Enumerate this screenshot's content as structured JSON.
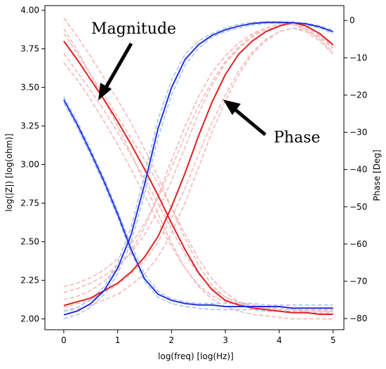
{
  "chart_data": {
    "type": "line",
    "title": "",
    "xlabel": "log(freq) [log(Hz)]",
    "ylabel_left": "log(|Z|) [log(ohm)]",
    "ylabel_right": "Phase [Deg]",
    "xlim": [
      -0.35,
      5.2
    ],
    "ylim_left": [
      1.93,
      4.03
    ],
    "ylim_right": [
      -83,
      4
    ],
    "x_ticks": [
      0,
      1,
      2,
      3,
      4,
      5
    ],
    "y_ticks_left": [
      "2.00",
      "2.25",
      "2.50",
      "2.75",
      "3.00",
      "3.25",
      "3.50",
      "3.75",
      "4.00"
    ],
    "y_ticks_right": [
      "0",
      "−10",
      "−20",
      "−30",
      "−40",
      "−50",
      "−60",
      "−70",
      "−80"
    ],
    "grid": false,
    "annotations": [
      {
        "text": "Magnitude"
      },
      {
        "text": "Phase"
      }
    ],
    "x": [
      0,
      0.25,
      0.5,
      0.75,
      1.0,
      1.25,
      1.5,
      1.75,
      2.0,
      2.25,
      2.5,
      2.75,
      3.0,
      3.25,
      3.5,
      3.75,
      4.0,
      4.25,
      4.5,
      4.75,
      5.0
    ],
    "series": [
      {
        "color": "#e02020",
        "axis": "left",
        "style": "solid",
        "values": [
          3.8,
          3.68,
          3.55,
          3.42,
          3.28,
          3.13,
          2.97,
          2.8,
          2.62,
          2.45,
          2.3,
          2.19,
          2.12,
          2.09,
          2.07,
          2.06,
          2.05,
          2.04,
          2.04,
          2.03,
          2.03
        ]
      },
      {
        "color": "#2233dd",
        "axis": "left",
        "style": "solid",
        "values": [
          3.42,
          3.26,
          3.08,
          2.89,
          2.68,
          2.45,
          2.26,
          2.16,
          2.12,
          2.1,
          2.09,
          2.09,
          2.08,
          2.08,
          2.08,
          2.08,
          2.08,
          2.07,
          2.07,
          2.07,
          2.07
        ]
      },
      {
        "color": "#e02020",
        "axis": "right",
        "style": "solid",
        "values": [
          -76.5,
          -75.5,
          -74.5,
          -72.5,
          -70.5,
          -67.5,
          -63.5,
          -58.0,
          -50.0,
          -41.0,
          -31.0,
          -22.0,
          -14.5,
          -9.0,
          -5.5,
          -3.0,
          -1.5,
          -0.5,
          -1.5,
          -3.5,
          -6.5
        ]
      },
      {
        "color": "#2233dd",
        "axis": "right",
        "style": "solid",
        "values": [
          -79.0,
          -78.0,
          -76.0,
          -72.5,
          -66.5,
          -57.5,
          -44.0,
          -29.0,
          -18.0,
          -10.5,
          -6.5,
          -4.0,
          -2.5,
          -1.5,
          -0.8,
          -0.5,
          -0.5,
          -0.6,
          -0.9,
          -1.7,
          -3.0
        ]
      },
      {
        "color": "#f4b8b8",
        "axis": "left",
        "style": "dashed",
        "values": [
          3.95,
          3.83,
          3.7,
          3.56,
          3.42,
          3.27,
          3.1,
          2.92,
          2.72,
          2.52,
          2.35,
          2.22,
          2.14,
          2.1,
          2.08,
          2.07,
          2.06,
          2.06,
          2.05,
          2.05,
          2.05
        ]
      },
      {
        "color": "#f4b8b8",
        "axis": "left",
        "style": "dashed",
        "values": [
          3.88,
          3.74,
          3.58,
          3.42,
          3.25,
          3.07,
          2.88,
          2.68,
          2.49,
          2.33,
          2.21,
          2.13,
          2.08,
          2.05,
          2.03,
          2.02,
          2.01,
          2.0,
          2.0,
          2.0,
          2.0
        ]
      },
      {
        "color": "#f4b8b8",
        "axis": "left",
        "style": "dashed",
        "values": [
          3.72,
          3.6,
          3.48,
          3.35,
          3.21,
          3.06,
          2.91,
          2.75,
          2.58,
          2.42,
          2.29,
          2.2,
          2.14,
          2.11,
          2.09,
          2.08,
          2.08,
          2.07,
          2.07,
          2.07,
          2.07
        ]
      },
      {
        "color": "#f4b8b8",
        "axis": "left",
        "style": "dashed",
        "values": [
          3.85,
          3.72,
          3.58,
          3.45,
          3.31,
          3.17,
          3.03,
          2.88,
          2.72,
          2.55,
          2.39,
          2.26,
          2.17,
          2.11,
          2.08,
          2.06,
          2.05,
          2.04,
          2.04,
          2.04,
          2.04
        ]
      },
      {
        "color": "#f4b8b8",
        "axis": "left",
        "style": "dashed",
        "values": [
          3.66,
          3.55,
          3.42,
          3.28,
          3.13,
          2.97,
          2.8,
          2.63,
          2.47,
          2.33,
          2.22,
          2.15,
          2.11,
          2.09,
          2.08,
          2.07,
          2.07,
          2.06,
          2.06,
          2.06,
          2.06
        ]
      },
      {
        "color": "#aac4ee",
        "axis": "left",
        "style": "dashed",
        "values": [
          3.44,
          3.28,
          3.1,
          2.91,
          2.7,
          2.48,
          2.29,
          2.18,
          2.13,
          2.11,
          2.1,
          2.1,
          2.1,
          2.1,
          2.1,
          2.09,
          2.09,
          2.09,
          2.09,
          2.09,
          2.09
        ]
      },
      {
        "color": "#aac4ee",
        "axis": "left",
        "style": "dashed",
        "values": [
          3.4,
          3.24,
          3.06,
          2.87,
          2.66,
          2.43,
          2.24,
          2.14,
          2.1,
          2.08,
          2.07,
          2.06,
          2.06,
          2.06,
          2.06,
          2.05,
          2.05,
          2.05,
          2.05,
          2.05,
          2.05
        ]
      },
      {
        "color": "#f4b8b8",
        "axis": "right",
        "style": "dashed",
        "values": [
          -73.0,
          -72.0,
          -70.5,
          -68.5,
          -66.0,
          -62.5,
          -57.5,
          -51.0,
          -43.0,
          -34.0,
          -25.0,
          -17.5,
          -11.5,
          -7.5,
          -4.5,
          -2.5,
          -1.5,
          -1.0,
          -2.0,
          -4.0,
          -7.0
        ]
      },
      {
        "color": "#f4b8b8",
        "axis": "right",
        "style": "dashed",
        "values": [
          -78.0,
          -77.5,
          -76.5,
          -75.0,
          -73.5,
          -71.0,
          -68.0,
          -63.5,
          -57.0,
          -49.0,
          -39.5,
          -30.0,
          -21.5,
          -14.5,
          -9.0,
          -5.5,
          -3.0,
          -2.0,
          -2.5,
          -4.5,
          -7.5
        ]
      },
      {
        "color": "#f4b8b8",
        "axis": "right",
        "style": "dashed",
        "values": [
          -75.0,
          -74.0,
          -72.5,
          -70.0,
          -66.5,
          -62.0,
          -55.5,
          -47.0,
          -37.5,
          -28.5,
          -20.5,
          -14.0,
          -9.5,
          -6.0,
          -3.5,
          -2.0,
          -1.0,
          -1.0,
          -2.5,
          -5.0,
          -8.5
        ]
      },
      {
        "color": "#f4b8b8",
        "axis": "right",
        "style": "dashed",
        "values": [
          -77.0,
          -76.0,
          -75.0,
          -73.0,
          -71.0,
          -68.0,
          -64.5,
          -59.5,
          -53.0,
          -45.0,
          -36.0,
          -27.5,
          -20.0,
          -13.5,
          -8.5,
          -5.0,
          -3.0,
          -2.0,
          -3.0,
          -5.5,
          -9.0
        ]
      },
      {
        "color": "#f4b8b8",
        "axis": "right",
        "style": "dashed",
        "values": [
          -71.5,
          -70.5,
          -69.0,
          -67.0,
          -64.0,
          -60.0,
          -54.5,
          -47.5,
          -39.5,
          -31.0,
          -23.0,
          -16.5,
          -11.0,
          -7.0,
          -4.0,
          -2.0,
          -1.0,
          -0.5,
          -1.5,
          -3.5,
          -6.5
        ]
      },
      {
        "color": "#aac4ee",
        "axis": "right",
        "style": "dashed",
        "values": [
          -80.0,
          -79.0,
          -77.0,
          -73.5,
          -68.0,
          -59.5,
          -46.5,
          -31.5,
          -20.0,
          -12.0,
          -7.5,
          -4.5,
          -3.0,
          -2.0,
          -1.2,
          -0.8,
          -0.8,
          -0.9,
          -1.2,
          -2.0,
          -3.5
        ]
      },
      {
        "color": "#aac4ee",
        "axis": "right",
        "style": "dashed",
        "values": [
          -78.0,
          -77.0,
          -75.0,
          -71.5,
          -65.0,
          -55.5,
          -41.5,
          -26.5,
          -16.0,
          -9.0,
          -5.5,
          -3.5,
          -2.0,
          -1.0,
          -0.5,
          -0.3,
          -0.3,
          -0.4,
          -0.7,
          -1.4,
          -2.6
        ]
      }
    ]
  }
}
